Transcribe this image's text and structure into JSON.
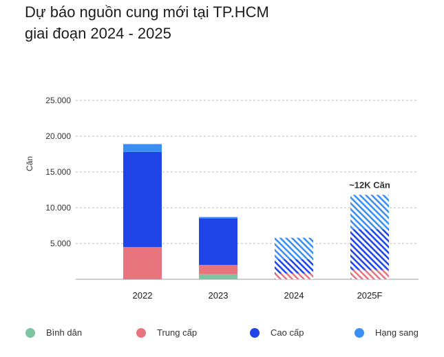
{
  "title": {
    "line1": "Dự báo nguồn cung mới tại TP.HCM",
    "line2": "giai đoạn 2024 - 2025"
  },
  "chart_data": {
    "type": "bar",
    "stacked": true,
    "ylabel": "Căn",
    "xlabel": "",
    "ylim": [
      0,
      25000
    ],
    "yticks": [
      {
        "value": 5000,
        "label": "5.000"
      },
      {
        "value": 10000,
        "label": "10.000"
      },
      {
        "value": 15000,
        "label": "15.000"
      },
      {
        "value": 20000,
        "label": "20.000"
      },
      {
        "value": 25000,
        "label": "25.000"
      }
    ],
    "grid": true,
    "legend_position": "bottom",
    "categories": [
      "2022",
      "2023",
      "2024",
      "2025F"
    ],
    "forecast_categories": [
      "2024",
      "2025F"
    ],
    "series": [
      {
        "name": "Bình dân",
        "color": "#7dc4a0",
        "values": [
          0,
          700,
          0,
          0
        ]
      },
      {
        "name": "Trung cấp",
        "color": "#e8757e",
        "values": [
          4500,
          1300,
          800,
          1300
        ]
      },
      {
        "name": "Cao cấp",
        "color": "#1f44e8",
        "values": [
          13300,
          6500,
          2000,
          5700
        ]
      },
      {
        "name": "Hạng sang",
        "color": "#3b8ff3",
        "values": [
          1100,
          200,
          3000,
          4800
        ]
      }
    ],
    "annotations": [
      {
        "category": "2025F",
        "text": "~12K Căn"
      }
    ]
  }
}
